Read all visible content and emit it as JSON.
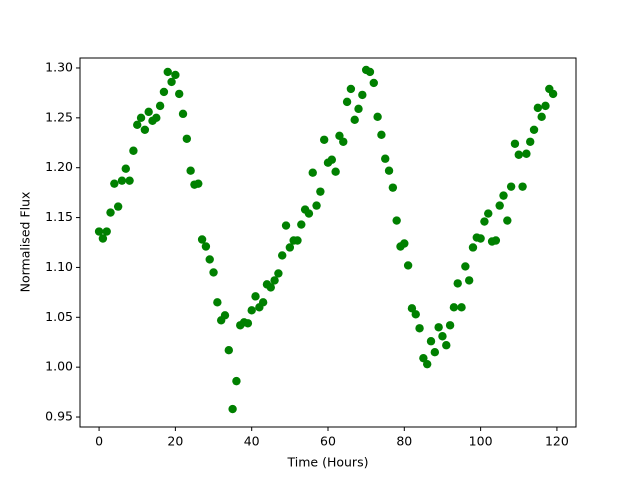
{
  "chart_data": {
    "type": "scatter",
    "x_label": "Time (Hours)",
    "y_label": "Normalised Flux",
    "x": [
      0,
      1,
      2,
      3,
      4,
      5,
      6,
      7,
      8,
      9,
      10,
      11,
      12,
      13,
      14,
      15,
      16,
      17,
      18,
      19,
      20,
      21,
      22,
      23,
      24,
      25,
      26,
      27,
      28,
      29,
      30,
      31,
      32,
      33,
      34,
      35,
      36,
      37,
      38,
      39,
      40,
      41,
      42,
      43,
      44,
      45,
      46,
      47,
      48,
      49,
      50,
      51,
      52,
      53,
      54,
      55,
      56,
      57,
      58,
      59,
      60,
      61,
      62,
      63,
      64,
      65,
      66,
      67,
      68,
      69,
      70,
      71,
      72,
      73,
      74,
      75,
      76,
      77,
      78,
      79,
      80,
      81,
      82,
      83,
      84,
      85,
      86,
      87,
      88,
      89,
      90,
      91,
      92,
      93,
      94,
      95,
      96,
      97,
      98,
      99,
      100,
      101,
      102,
      103,
      104,
      105,
      106,
      107,
      108,
      109,
      110,
      111,
      112,
      113,
      114,
      115,
      116,
      117,
      118,
      119
    ],
    "y": [
      1.136,
      1.129,
      1.136,
      1.155,
      1.184,
      1.161,
      1.187,
      1.199,
      1.187,
      1.217,
      1.243,
      1.25,
      1.238,
      1.256,
      1.247,
      1.25,
      1.262,
      1.276,
      1.296,
      1.286,
      1.293,
      1.274,
      1.254,
      1.229,
      1.197,
      1.183,
      1.184,
      1.128,
      1.121,
      1.108,
      1.095,
      1.065,
      1.047,
      1.052,
      1.017,
      0.958,
      0.986,
      1.042,
      1.045,
      1.044,
      1.057,
      1.071,
      1.06,
      1.065,
      1.083,
      1.08,
      1.087,
      1.094,
      1.112,
      1.142,
      1.12,
      1.127,
      1.127,
      1.143,
      1.158,
      1.154,
      1.195,
      1.162,
      1.176,
      1.228,
      1.205,
      1.208,
      1.196,
      1.232,
      1.226,
      1.266,
      1.279,
      1.248,
      1.259,
      1.273,
      1.298,
      1.296,
      1.285,
      1.251,
      1.233,
      1.209,
      1.197,
      1.18,
      1.147,
      1.121,
      1.124,
      1.102,
      1.059,
      1.053,
      1.039,
      1.009,
      1.003,
      1.026,
      1.015,
      1.04,
      1.031,
      1.022,
      1.042,
      1.06,
      1.084,
      1.06,
      1.101,
      1.087,
      1.12,
      1.13,
      1.129,
      1.146,
      1.154,
      1.126,
      1.127,
      1.162,
      1.172,
      1.147,
      1.181,
      1.224,
      1.213,
      1.181,
      1.214,
      1.226,
      1.238,
      1.26,
      1.251,
      1.262,
      1.279,
      1.274
    ],
    "color": "#008000",
    "xlim": [
      -5,
      125
    ],
    "ylim": [
      0.94,
      1.31
    ],
    "xticks": [
      0,
      20,
      40,
      60,
      80,
      100,
      120
    ],
    "yticks": [
      0.95,
      {
        "value": 1.0,
        "label": "1.00"
      },
      1.05,
      {
        "value": 1.1,
        "label": "1.10"
      },
      1.15,
      {
        "value": 1.2,
        "label": "1.20"
      },
      1.25,
      {
        "value": 1.3,
        "label": "1.30"
      }
    ],
    "grid": false
  }
}
